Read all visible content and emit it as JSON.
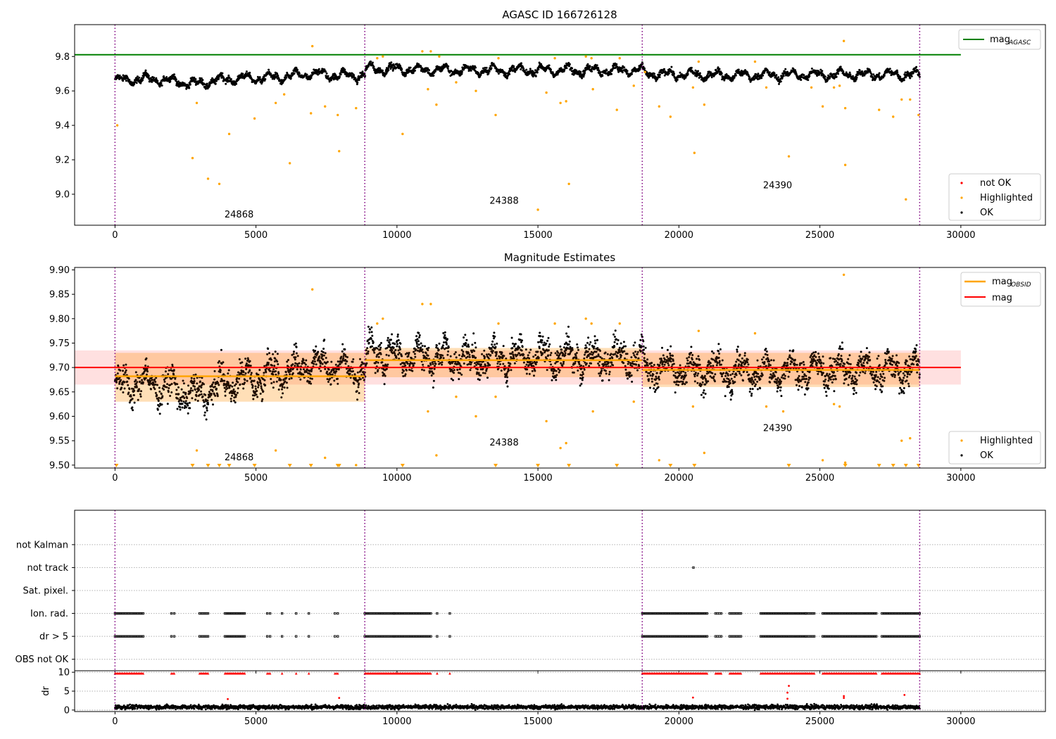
{
  "chart_data": [
    {
      "type": "scatter",
      "title": "AGASC ID 166726128",
      "xlim": [
        -1432,
        33000
      ],
      "ylim": [
        8.82,
        9.985
      ],
      "xticks": [
        0,
        5000,
        10000,
        15000,
        20000,
        25000,
        30000
      ],
      "yticks": [
        9.0,
        9.2,
        9.4,
        9.6,
        9.8
      ],
      "hline": {
        "name": "mag",
        "subscript": "AGASC",
        "y": 9.81,
        "x": [
          -1432,
          30000
        ],
        "color": "#008000"
      },
      "obsid_boundaries": [
        0,
        8860,
        18700,
        28540
      ],
      "obsid_labels": [
        {
          "text": "24868",
          "x": 4400,
          "y": 8.865
        },
        {
          "text": "24388",
          "x": 13800,
          "y": 8.945
        },
        {
          "text": "24390",
          "x": 23500,
          "y": 9.035
        }
      ],
      "legend_upper": [
        "mag"
      ],
      "legend_lower": [
        "not OK",
        "Highlighted",
        "OK"
      ],
      "legend_placement": "upper-right and lower-right",
      "ok_trend": [
        [
          0,
          9.66
        ],
        [
          1000,
          9.67
        ],
        [
          2000,
          9.66
        ],
        [
          2800,
          9.64
        ],
        [
          4000,
          9.67
        ],
        [
          6000,
          9.68
        ],
        [
          7000,
          9.7
        ],
        [
          8000,
          9.69
        ],
        [
          8860,
          9.69
        ],
        [
          8900,
          9.73
        ],
        [
          12000,
          9.72
        ],
        [
          15000,
          9.72
        ],
        [
          18700,
          9.72
        ],
        [
          18750,
          9.7
        ],
        [
          22000,
          9.69
        ],
        [
          25000,
          9.695
        ],
        [
          28540,
          9.695
        ]
      ],
      "ok_noise": 0.03,
      "highlighted": [
        [
          80,
          9.4
        ],
        [
          2750,
          9.21
        ],
        [
          2900,
          9.53
        ],
        [
          3300,
          9.09
        ],
        [
          3700,
          9.06
        ],
        [
          4050,
          9.35
        ],
        [
          4950,
          9.44
        ],
        [
          5700,
          9.53
        ],
        [
          6000,
          9.58
        ],
        [
          6200,
          9.18
        ],
        [
          6950,
          9.47
        ],
        [
          7000,
          9.86
        ],
        [
          7450,
          9.51
        ],
        [
          7900,
          9.46
        ],
        [
          7950,
          9.25
        ],
        [
          8550,
          9.5
        ],
        [
          9300,
          9.79
        ],
        [
          9500,
          9.8
        ],
        [
          10200,
          9.35
        ],
        [
          10900,
          9.83
        ],
        [
          11100,
          9.61
        ],
        [
          11200,
          9.83
        ],
        [
          11400,
          9.52
        ],
        [
          11500,
          9.8
        ],
        [
          12100,
          9.65
        ],
        [
          12800,
          9.6
        ],
        [
          13500,
          9.46
        ],
        [
          13600,
          9.79
        ],
        [
          15000,
          8.91
        ],
        [
          15300,
          9.59
        ],
        [
          15600,
          9.79
        ],
        [
          15800,
          9.53
        ],
        [
          16000,
          9.54
        ],
        [
          16100,
          9.06
        ],
        [
          16700,
          9.8
        ],
        [
          16900,
          9.79
        ],
        [
          16950,
          9.61
        ],
        [
          17800,
          9.49
        ],
        [
          17900,
          9.79
        ],
        [
          18400,
          9.63
        ],
        [
          18800,
          9.71
        ],
        [
          19300,
          9.51
        ],
        [
          19700,
          9.45
        ],
        [
          20500,
          9.62
        ],
        [
          20550,
          9.24
        ],
        [
          20700,
          9.77
        ],
        [
          20900,
          9.52
        ],
        [
          22700,
          9.77
        ],
        [
          23100,
          9.62
        ],
        [
          23900,
          9.22
        ],
        [
          24700,
          9.62
        ],
        [
          25100,
          9.51
        ],
        [
          25500,
          9.62
        ],
        [
          25700,
          9.63
        ],
        [
          25850,
          9.89
        ],
        [
          25900,
          9.5
        ],
        [
          25900,
          9.17
        ],
        [
          27100,
          9.49
        ],
        [
          27600,
          9.45
        ],
        [
          27900,
          9.55
        ],
        [
          28050,
          8.97
        ],
        [
          28200,
          9.55
        ],
        [
          28500,
          9.46
        ]
      ],
      "not_ok": []
    },
    {
      "type": "scatter",
      "title": "Magnitude Estimates",
      "xlim": [
        -1432,
        33000
      ],
      "ylim": [
        9.494,
        9.905
      ],
      "xticks": [
        0,
        5000,
        10000,
        15000,
        20000,
        25000,
        30000
      ],
      "yticks": [
        9.5,
        9.55,
        9.6,
        9.65,
        9.7,
        9.75,
        9.8,
        9.85,
        9.9
      ],
      "mag": {
        "name": "mag",
        "y": 9.7,
        "band": [
          9.665,
          9.735
        ],
        "x": [
          -1432,
          30000
        ],
        "color": "#ff0000"
      },
      "mag_obsid": {
        "name": "mag",
        "subscript": "OBSID",
        "color": "#ffa500",
        "segments": [
          {
            "x": [
              0,
              8860
            ],
            "y": 9.682,
            "band": [
              9.63,
              9.73
            ]
          },
          {
            "x": [
              8860,
              18700
            ],
            "y": 9.715,
            "band": [
              9.68,
              9.74
            ]
          },
          {
            "x": [
              18700,
              28540
            ],
            "y": 9.695,
            "band": [
              9.66,
              9.73
            ]
          }
        ]
      },
      "obsid_boundaries": [
        0,
        8860,
        18700,
        28540
      ],
      "obsid_labels": [
        {
          "text": "24868",
          "x": 4400,
          "y": 9.51
        },
        {
          "text": "24388",
          "x": 13800,
          "y": 9.54
        },
        {
          "text": "24390",
          "x": 23500,
          "y": 9.57
        }
      ],
      "legend_upper": [
        "mag",
        "mag"
      ],
      "legend_lower": [
        "Highlighted",
        "OK"
      ],
      "ok_trend": [
        [
          0,
          9.66
        ],
        [
          1000,
          9.67
        ],
        [
          2000,
          9.66
        ],
        [
          2800,
          9.64
        ],
        [
          4000,
          9.67
        ],
        [
          6000,
          9.69
        ],
        [
          7000,
          9.71
        ],
        [
          8000,
          9.7
        ],
        [
          8860,
          9.69
        ],
        [
          8900,
          9.73
        ],
        [
          12000,
          9.72
        ],
        [
          15000,
          9.72
        ],
        [
          18700,
          9.72
        ],
        [
          18750,
          9.7
        ],
        [
          22000,
          9.69
        ],
        [
          25000,
          9.695
        ],
        [
          28540,
          9.695
        ]
      ],
      "ok_noise": 0.05,
      "highlighted": [
        [
          7000,
          9.86
        ],
        [
          9300,
          9.79
        ],
        [
          9500,
          9.8
        ],
        [
          10900,
          9.83
        ],
        [
          11100,
          9.61
        ],
        [
          11200,
          9.83
        ],
        [
          11400,
          9.52
        ],
        [
          12100,
          9.64
        ],
        [
          12800,
          9.6
        ],
        [
          13500,
          9.64
        ],
        [
          13600,
          9.79
        ],
        [
          15300,
          9.59
        ],
        [
          15600,
          9.79
        ],
        [
          15800,
          9.535
        ],
        [
          16000,
          9.545
        ],
        [
          16700,
          9.8
        ],
        [
          16900,
          9.79
        ],
        [
          16950,
          9.61
        ],
        [
          17900,
          9.79
        ],
        [
          18400,
          9.63
        ],
        [
          2900,
          9.53
        ],
        [
          5700,
          9.53
        ],
        [
          7450,
          9.515
        ],
        [
          8550,
          9.5
        ],
        [
          19300,
          9.51
        ],
        [
          20500,
          9.62
        ],
        [
          20700,
          9.775
        ],
        [
          20900,
          9.525
        ],
        [
          22700,
          9.77
        ],
        [
          23100,
          9.62
        ],
        [
          23700,
          9.61
        ],
        [
          25100,
          9.51
        ],
        [
          25500,
          9.625
        ],
        [
          25700,
          9.62
        ],
        [
          25850,
          9.89
        ],
        [
          25900,
          9.505
        ],
        [
          27900,
          9.55
        ],
        [
          28200,
          9.555
        ]
      ],
      "clipped_low": [
        50,
        2750,
        3300,
        3700,
        4050,
        4950,
        6200,
        6950,
        7900,
        7950,
        10200,
        13500,
        15000,
        16100,
        17800,
        19700,
        20550,
        23900,
        25900,
        27100,
        27600,
        28050,
        28500
      ]
    },
    {
      "type": "scatter",
      "title": "",
      "xlim": [
        -1432,
        33000
      ],
      "ylim": [
        -0.5,
        6.5
      ],
      "categories": [
        "OBS not OK",
        "dr > 5",
        "Ion. rad.",
        "Sat. pixel.",
        "not track",
        "not Kalman"
      ],
      "flag_ranges": [
        {
          "category": "dr > 5",
          "x": [
            [
              0,
              1000
            ],
            [
              2000,
              2100
            ],
            [
              3000,
              3300
            ],
            [
              3900,
              4600
            ],
            [
              5400,
              5500
            ],
            [
              5900,
              5950
            ],
            [
              6400,
              6450
            ],
            [
              6850,
              6900
            ],
            [
              7800,
              7900
            ],
            [
              8860,
              9900
            ],
            [
              9900,
              11200
            ],
            [
              11400,
              11450
            ],
            [
              11850,
              11900
            ],
            [
              18700,
              21000
            ],
            [
              21300,
              21500
            ],
            [
              21800,
              22200
            ],
            [
              22900,
              24500
            ],
            [
              24500,
              24800
            ],
            [
              25100,
              27000
            ],
            [
              27200,
              28540
            ]
          ]
        },
        {
          "category": "Ion. rad.",
          "x": [
            [
              0,
              1000
            ],
            [
              2000,
              2100
            ],
            [
              3000,
              3300
            ],
            [
              3900,
              4600
            ],
            [
              5400,
              5500
            ],
            [
              5900,
              5950
            ],
            [
              6400,
              6450
            ],
            [
              6850,
              6900
            ],
            [
              7800,
              7900
            ],
            [
              8860,
              9900
            ],
            [
              9900,
              11200
            ],
            [
              11400,
              11450
            ],
            [
              11850,
              11900
            ],
            [
              18700,
              21000
            ],
            [
              21300,
              21500
            ],
            [
              21800,
              22200
            ],
            [
              22900,
              24500
            ],
            [
              24500,
              24800
            ],
            [
              25100,
              27000
            ],
            [
              27200,
              28540
            ]
          ]
        },
        {
          "category": "not track",
          "x": [
            [
              20500,
              20530
            ]
          ]
        }
      ],
      "obsid_boundaries": [
        0,
        8860,
        18700,
        28540
      ]
    },
    {
      "type": "scatter",
      "title": "",
      "xlim": [
        -1432,
        33000
      ],
      "ylim": [
        -0.4,
        10.4
      ],
      "yticks": [
        0,
        5,
        10
      ],
      "ylabel": "dr",
      "dr_typical": 0.8,
      "dr_clipped_ranges": [
        [
          0,
          1000
        ],
        [
          2000,
          2100
        ],
        [
          3000,
          3300
        ],
        [
          3900,
          4600
        ],
        [
          5400,
          5500
        ],
        [
          5900,
          5950
        ],
        [
          6400,
          6450
        ],
        [
          6850,
          6900
        ],
        [
          7800,
          7900
        ],
        [
          8860,
          9900
        ],
        [
          9900,
          11200
        ],
        [
          11400,
          11450
        ],
        [
          11850,
          11900
        ],
        [
          18700,
          21000
        ],
        [
          21300,
          21500
        ],
        [
          21800,
          22200
        ],
        [
          22900,
          24500
        ],
        [
          24500,
          24800
        ],
        [
          25100,
          27000
        ],
        [
          27200,
          28540
        ]
      ],
      "dr_outliers": [
        [
          4000,
          2.9
        ],
        [
          7950,
          3.2
        ],
        [
          20500,
          3.3
        ],
        [
          23850,
          3.0
        ],
        [
          23850,
          4.6
        ],
        [
          23900,
          6.4
        ],
        [
          25850,
          3.7
        ],
        [
          25850,
          3.2
        ],
        [
          28000,
          4.0
        ]
      ],
      "obsid_boundaries": [
        0,
        8860,
        18700,
        28540
      ]
    }
  ]
}
